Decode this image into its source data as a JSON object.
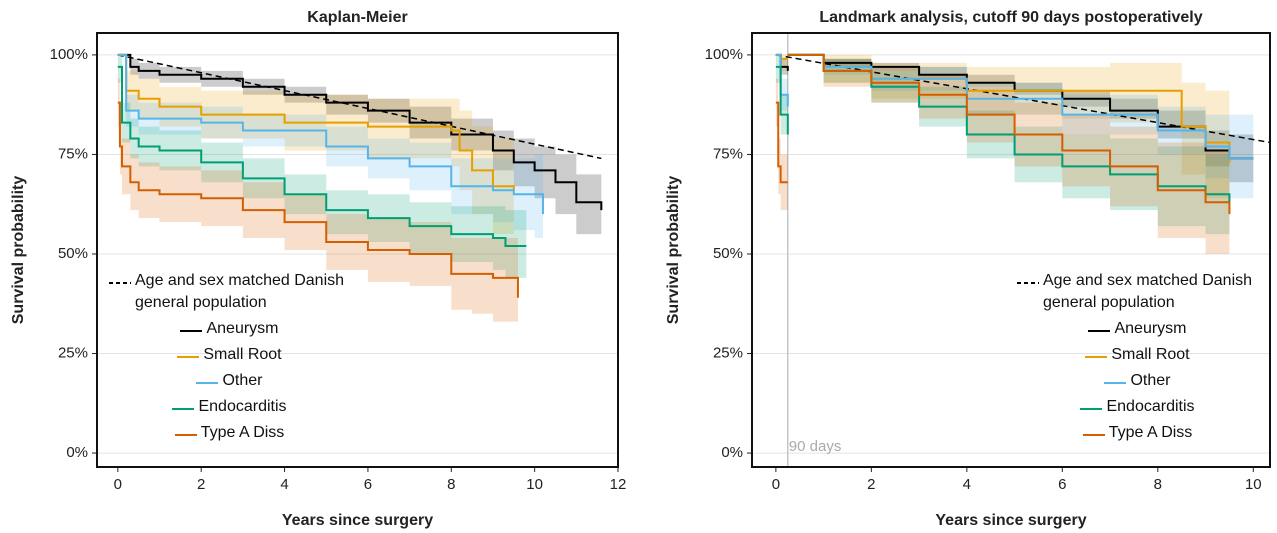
{
  "chart_data": [
    {
      "type": "line",
      "title": "Kaplan-Meier",
      "x_label": "Years since surgery",
      "y_label": "Survival probability",
      "xlim": [
        -0.5,
        12
      ],
      "xticks": [
        0,
        2,
        4,
        6,
        8,
        10,
        12
      ],
      "ylim": [
        -3.5,
        105.5
      ],
      "yticks": [
        {
          "value": 0,
          "label": "0%"
        },
        {
          "value": 25,
          "label": "25%"
        },
        {
          "value": 50,
          "label": "50%"
        },
        {
          "value": 75,
          "label": "75%"
        },
        {
          "value": 100,
          "label": "100%"
        }
      ],
      "grid": true,
      "legend": "lower left",
      "series": [
        {
          "name": "Age and sex matched Danish general population",
          "color": "#000000",
          "dashed": true,
          "step": false,
          "x": [
            0,
            11.6
          ],
          "values": [
            100,
            74
          ]
        },
        {
          "name": "Aneurysm",
          "color": "#000000",
          "step": true,
          "x": [
            0,
            0.3,
            0.5,
            1,
            2,
            3,
            4,
            5,
            6,
            7,
            8,
            9,
            9.5,
            10,
            10.5,
            11,
            11.6
          ],
          "values": [
            100,
            97,
            96,
            95,
            94,
            92,
            90,
            88,
            86,
            83,
            80,
            76,
            73,
            71,
            68,
            63,
            61
          ],
          "lower": [
            100,
            95,
            94,
            93,
            92,
            90,
            88,
            85,
            83,
            79,
            76,
            71,
            67,
            64,
            60,
            55,
            53
          ],
          "upper": [
            100,
            99,
            98,
            97,
            96,
            94,
            92,
            90,
            89,
            87,
            84,
            81,
            79,
            77,
            75,
            70,
            69
          ]
        },
        {
          "name": "Small Root",
          "color": "#E69F00",
          "step": true,
          "x": [
            0,
            0.2,
            0.5,
            1,
            2,
            4,
            6,
            8,
            8.2,
            8.5,
            9,
            9.5
          ],
          "values": [
            100,
            91,
            89,
            87,
            85,
            83,
            82,
            81,
            76,
            71,
            67,
            66
          ],
          "lower": [
            100,
            86,
            84,
            82,
            79,
            76,
            74,
            72,
            66,
            60,
            55,
            53
          ],
          "upper": [
            100,
            96,
            94,
            92,
            91,
            90,
            89,
            89,
            86,
            82,
            79,
            79
          ]
        },
        {
          "name": "Other",
          "color": "#56B4E9",
          "step": true,
          "x": [
            0,
            0.2,
            0.5,
            1,
            2,
            3,
            5,
            6,
            7,
            8,
            9,
            9.5,
            10,
            10.2
          ],
          "values": [
            100,
            86,
            84,
            84,
            83,
            81,
            77,
            74,
            72,
            67,
            66,
            65,
            65,
            60
          ],
          "lower": [
            100,
            82,
            80,
            80,
            79,
            77,
            72,
            69,
            66,
            60,
            58,
            56,
            54,
            47
          ],
          "upper": [
            100,
            90,
            88,
            88,
            87,
            85,
            82,
            79,
            78,
            74,
            74,
            74,
            75,
            72
          ]
        },
        {
          "name": "Endocarditis",
          "color": "#009E73",
          "step": true,
          "x": [
            0,
            0.1,
            0.3,
            0.5,
            1,
            2,
            3,
            4,
            5,
            6,
            7,
            8,
            9,
            9.3,
            9.8
          ],
          "values": [
            97,
            83,
            79,
            77,
            76,
            73,
            69,
            65,
            61,
            59,
            57,
            55,
            54,
            52,
            52
          ],
          "lower": [
            93,
            78,
            74,
            72,
            71,
            68,
            64,
            60,
            55,
            53,
            50,
            48,
            46,
            44,
            44
          ],
          "upper": [
            100,
            88,
            84,
            82,
            81,
            78,
            74,
            70,
            66,
            65,
            63,
            62,
            62,
            61,
            61
          ]
        },
        {
          "name": "Type A Diss",
          "color": "#D55E00",
          "step": true,
          "x": [
            0,
            0.05,
            0.1,
            0.3,
            0.5,
            1,
            2,
            3,
            4,
            5,
            6,
            7,
            8,
            8.5,
            9,
            9.6
          ],
          "values": [
            88,
            77,
            72,
            68,
            66,
            65,
            64,
            61,
            58,
            53,
            51,
            50,
            45,
            45,
            44,
            39
          ],
          "lower": [
            82,
            70,
            65,
            61,
            59,
            58,
            57,
            54,
            51,
            46,
            43,
            42,
            36,
            35,
            33,
            28
          ],
          "upper": [
            94,
            84,
            79,
            75,
            73,
            72,
            71,
            68,
            65,
            60,
            59,
            58,
            54,
            54,
            54,
            52
          ]
        }
      ]
    },
    {
      "type": "line",
      "title": "Landmark analysis, cutoff 90 days postoperatively",
      "x_label": "Years since surgery",
      "y_label": "Survival probability",
      "xlim": [
        -0.5,
        10.35
      ],
      "xticks": [
        0,
        2,
        4,
        6,
        8,
        10
      ],
      "ylim": [
        -3.5,
        105.5
      ],
      "yticks": [
        {
          "value": 0,
          "label": "0%"
        },
        {
          "value": 25,
          "label": "25%"
        },
        {
          "value": 50,
          "label": "50%"
        },
        {
          "value": 75,
          "label": "75%"
        },
        {
          "value": 100,
          "label": "100%"
        }
      ],
      "grid": true,
      "legend": "lower right",
      "annotation": {
        "x": 0.25,
        "text": "90 days"
      },
      "series": [
        {
          "name": "Age and sex matched Danish general population",
          "color": "#000000",
          "dashed": true,
          "step": false,
          "x": [
            0,
            10.35
          ],
          "values": [
            100,
            78
          ]
        },
        {
          "name": "Aneurysm",
          "color": "#000000",
          "step": true,
          "x": [
            0,
            0.1,
            0.25,
            0.25,
            0.25,
            1,
            2,
            3,
            4,
            5,
            6,
            7,
            8,
            9,
            9.5,
            10
          ],
          "values": [
            100,
            97,
            96,
            null,
            100,
            98,
            97,
            95,
            93,
            91,
            89,
            86,
            82,
            76,
            74,
            74
          ],
          "lower": [
            100,
            95,
            94,
            null,
            100,
            97,
            96,
            94,
            92,
            90,
            87,
            84,
            79,
            72,
            68,
            68
          ],
          "upper": [
            100,
            99,
            98,
            null,
            100,
            99,
            98,
            97,
            95,
            93,
            91,
            89,
            86,
            81,
            80,
            80
          ]
        },
        {
          "name": "Small Root",
          "color": "#E69F00",
          "step": true,
          "x": [
            0,
            0.1,
            0.25,
            0.25,
            0.25,
            1,
            2,
            4,
            6,
            7,
            8.2,
            8.5,
            9,
            9.5
          ],
          "values": [
            100,
            99,
            99,
            null,
            100,
            97,
            94,
            91,
            91,
            91,
            91,
            82,
            78,
            73
          ],
          "lower": [
            100,
            96,
            96,
            null,
            100,
            93,
            89,
            85,
            84,
            83,
            82,
            70,
            64,
            56
          ],
          "upper": [
            100,
            100,
            100,
            null,
            100,
            100,
            98,
            97,
            97,
            98,
            98,
            93,
            91,
            88
          ]
        },
        {
          "name": "Other",
          "color": "#56B4E9",
          "step": true,
          "x": [
            0,
            0.1,
            0.25,
            0.25,
            0.25,
            1,
            2,
            4,
            6,
            8,
            9,
            9.5,
            10
          ],
          "values": [
            100,
            90,
            87,
            null,
            100,
            97,
            94,
            89,
            85,
            81,
            77,
            74,
            74
          ],
          "lower": [
            100,
            86,
            83,
            null,
            100,
            95,
            91,
            85,
            80,
            75,
            69,
            64,
            64
          ],
          "upper": [
            100,
            94,
            91,
            null,
            100,
            99,
            97,
            93,
            90,
            87,
            85,
            85,
            85
          ]
        },
        {
          "name": "Endocarditis",
          "color": "#009E73",
          "step": true,
          "x": [
            0,
            0.1,
            0.25,
            0.25,
            0.25,
            1,
            2,
            3,
            4,
            5,
            6,
            7,
            8,
            9,
            9.5
          ],
          "values": [
            97,
            85,
            80,
            null,
            100,
            96,
            92,
            87,
            80,
            75,
            72,
            70,
            67,
            65,
            63
          ],
          "lower": [
            93,
            80,
            75,
            null,
            100,
            93,
            88,
            82,
            74,
            68,
            64,
            61,
            57,
            55,
            53
          ],
          "upper": [
            100,
            90,
            85,
            null,
            100,
            99,
            96,
            92,
            86,
            82,
            80,
            79,
            77,
            75,
            73
          ]
        },
        {
          "name": "Type A Diss",
          "color": "#D55E00",
          "step": true,
          "x": [
            0,
            0.05,
            0.1,
            0.25,
            0.25,
            0.25,
            1,
            2,
            3,
            4,
            5,
            6,
            7,
            8,
            9,
            9.5
          ],
          "values": [
            88,
            72,
            68,
            68,
            null,
            100,
            96,
            93,
            90,
            85,
            80,
            76,
            72,
            66,
            63,
            60
          ],
          "lower": [
            82,
            65,
            61,
            61,
            null,
            100,
            92,
            88,
            84,
            78,
            72,
            67,
            62,
            54,
            50,
            46
          ],
          "upper": [
            94,
            79,
            75,
            75,
            null,
            100,
            99,
            97,
            95,
            92,
            88,
            85,
            82,
            78,
            76,
            74
          ]
        }
      ]
    }
  ]
}
